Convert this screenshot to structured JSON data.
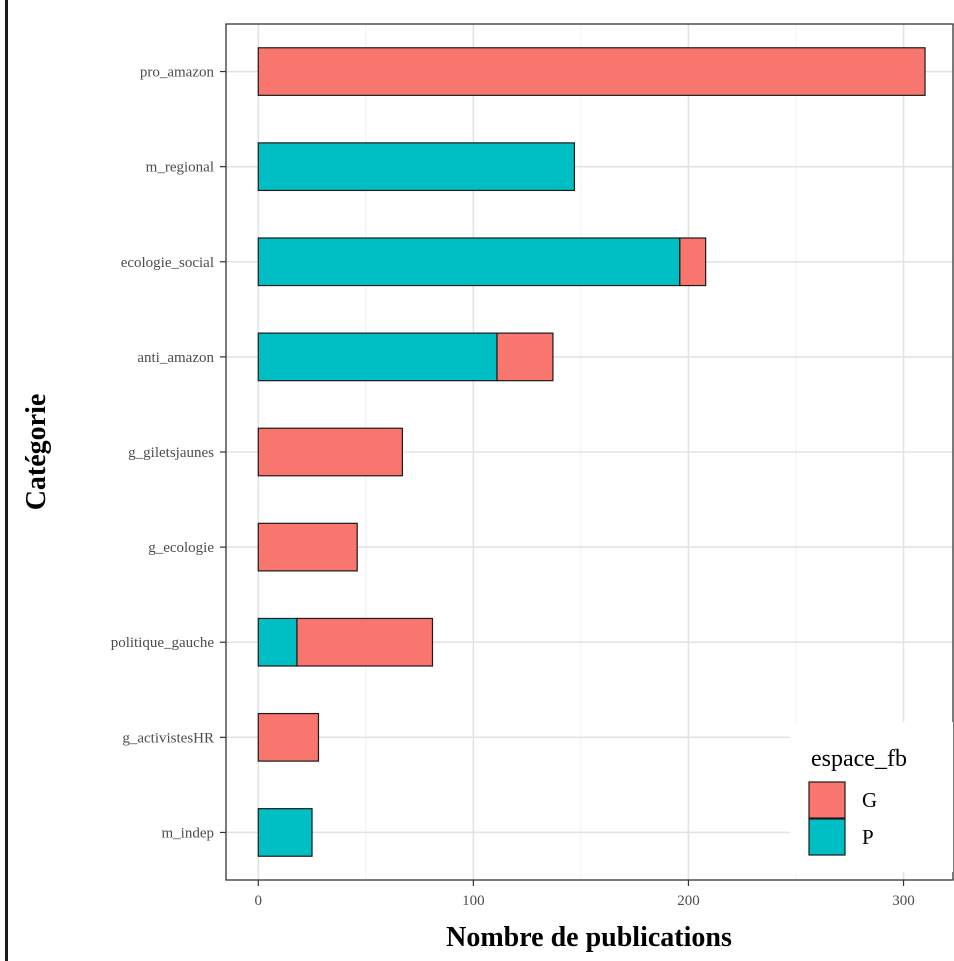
{
  "chart_data": {
    "type": "bar",
    "orientation": "horizontal",
    "stacked": true,
    "categories": [
      "pro_amazon",
      "m_regional",
      "ecologie_social",
      "anti_amazon",
      "g_giletsjaunes",
      "g_ecologie",
      "politique_gauche",
      "g_activistesHR",
      "m_indep"
    ],
    "series": [
      {
        "name": "P",
        "color": "#00BFC4",
        "values": [
          0,
          147,
          196,
          111,
          0,
          0,
          18,
          0,
          25
        ]
      },
      {
        "name": "G",
        "color": "#F8766D",
        "values": [
          310,
          0,
          12,
          26,
          67,
          46,
          63,
          28,
          0
        ]
      }
    ],
    "xlabel": "Nombre de publications",
    "ylabel": "Catégorie",
    "xlim": [
      -15,
      323
    ],
    "xticks": [
      0,
      100,
      200,
      300
    ],
    "grid": true,
    "legend": {
      "title": "espace_fb",
      "position": "bottom-right",
      "entries": [
        {
          "label": "G",
          "color": "#F8766D"
        },
        {
          "label": "P",
          "color": "#00BFC4"
        }
      ]
    }
  }
}
